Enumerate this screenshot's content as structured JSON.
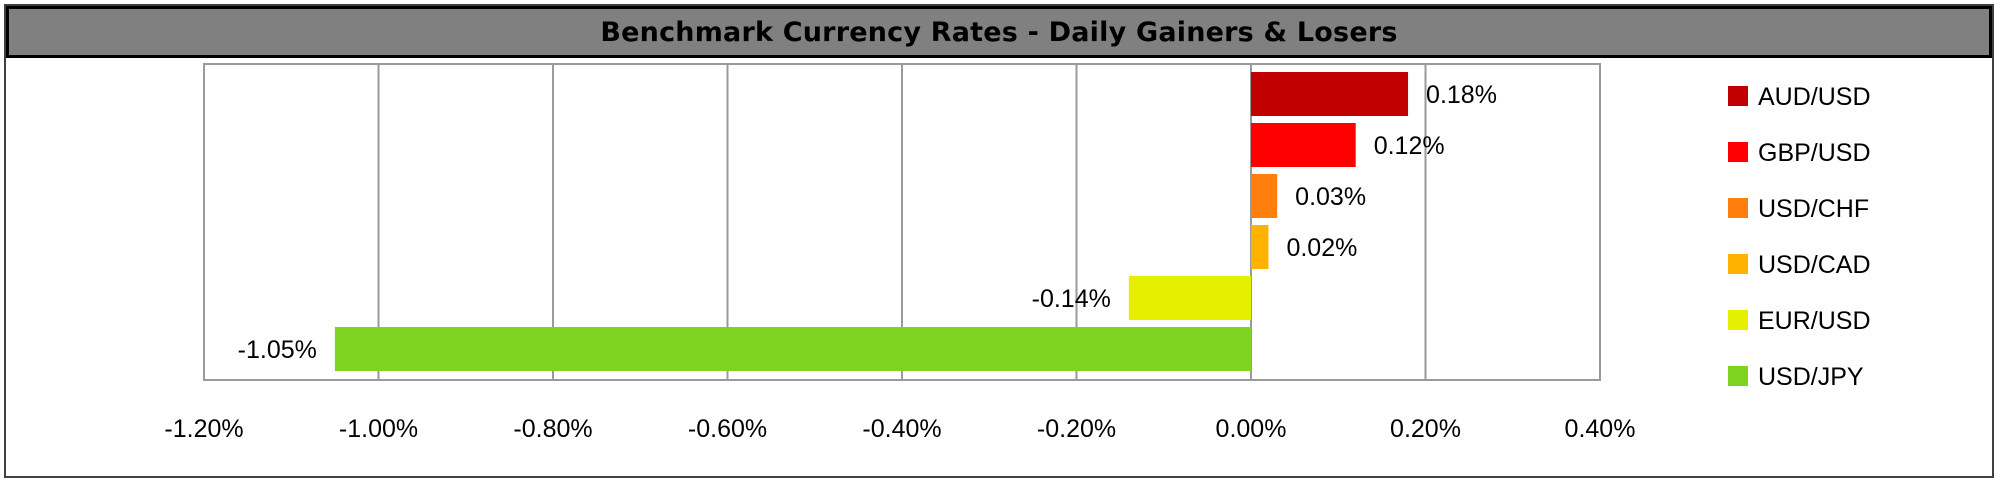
{
  "chart_data": {
    "type": "bar",
    "orientation": "horizontal",
    "title": "Benchmark Currency Rates - Daily Gainers & Losers",
    "categories": [
      "AUD/USD",
      "GBP/USD",
      "USD/CHF",
      "USD/CAD",
      "EUR/USD",
      "USD/JPY"
    ],
    "values": [
      0.18,
      0.12,
      0.03,
      0.02,
      -0.14,
      -1.05
    ],
    "value_labels": [
      "0.18%",
      "0.12%",
      "0.03%",
      "0.02%",
      "-0.14%",
      "-1.05%"
    ],
    "colors": [
      "#c00000",
      "#ff0000",
      "#ff7f0e",
      "#ffb300",
      "#e4f000",
      "#7ed321"
    ],
    "xlim": [
      -1.2,
      0.4
    ],
    "xticks": [
      -1.2,
      -1.0,
      -0.8,
      -0.6,
      -0.4,
      -0.2,
      0.0,
      0.2,
      0.4
    ],
    "xtick_labels": [
      "-1.20%",
      "-1.00%",
      "-0.80%",
      "-0.60%",
      "-0.40%",
      "-0.20%",
      "0.00%",
      "0.20%",
      "0.40%"
    ],
    "grid": "vertical",
    "legend_position": "right",
    "xlabel": "",
    "ylabel": ""
  }
}
